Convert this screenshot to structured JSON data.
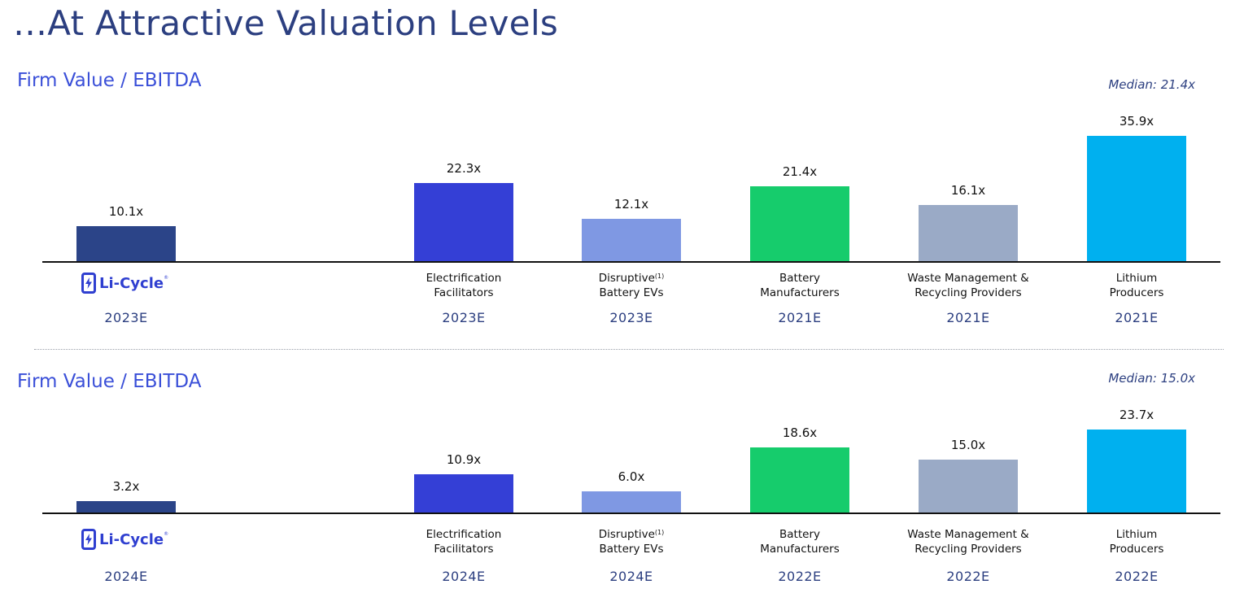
{
  "title": "…At Attractive Valuation Levels",
  "colors": {
    "li_cycle": "#2b4488",
    "electrification": "#343fd6",
    "disruptive": "#7f98e3",
    "battery": "#16cc6c",
    "waste": "#9aaac6",
    "lithium": "#00b0ef"
  },
  "chart_data": [
    {
      "type": "bar",
      "title": "Firm Value / EBITDA",
      "median_label": "Median: 21.4x",
      "categories": [
        "Li-Cycle",
        "Electrification Facilitators",
        "Disruptive Battery EVs",
        "Battery Manufacturers",
        "Waste Management & Recycling Providers",
        "Lithium Producers"
      ],
      "values": [
        10.1,
        22.3,
        12.1,
        21.4,
        16.1,
        35.9
      ],
      "value_labels": [
        "10.1x",
        "22.3x",
        "12.1x",
        "21.4x",
        "16.1x",
        "35.9x"
      ],
      "years": [
        "2023E",
        "2023E",
        "2023E",
        "2021E",
        "2021E",
        "2021E"
      ]
    },
    {
      "type": "bar",
      "title": "Firm Value / EBITDA",
      "median_label": "Median: 15.0x",
      "categories": [
        "Li-Cycle",
        "Electrification Facilitators",
        "Disruptive Battery EVs",
        "Battery Manufacturers",
        "Waste Management & Recycling Providers",
        "Lithium Producers"
      ],
      "values": [
        3.2,
        10.9,
        6.0,
        18.6,
        15.0,
        23.7
      ],
      "value_labels": [
        "3.2x",
        "10.9x",
        "6.0x",
        "18.6x",
        "15.0x",
        "23.7x"
      ],
      "years": [
        "2024E",
        "2024E",
        "2024E",
        "2022E",
        "2022E",
        "2022E"
      ]
    }
  ],
  "labels": {
    "logo_text": "Li-Cycle",
    "logo_mark": "®",
    "electrification": [
      "Electrification",
      "Facilitators"
    ],
    "disruptive": [
      "Disruptive",
      "Battery EVs"
    ],
    "disruptive_footnote": "(1)",
    "battery": [
      "Battery",
      "Manufacturers"
    ],
    "waste": [
      "Waste Management &",
      "Recycling Providers"
    ],
    "lithium": [
      "Lithium",
      "Producers"
    ]
  }
}
